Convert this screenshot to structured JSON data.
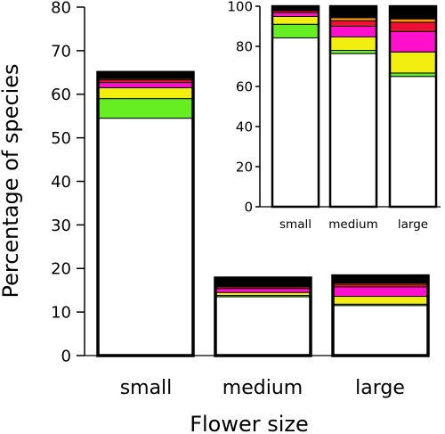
{
  "colors": {
    "white": "#ffffff",
    "green": "#66ee22",
    "yellow": "#f2ee10",
    "magenta": "#ff11cc",
    "red": "#ee1133",
    "orange": "#ff9900",
    "black": "#000000"
  },
  "chart_data": [
    {
      "type": "bar",
      "stacked": true,
      "title": "",
      "xlabel": "Flower size",
      "ylabel": "Percentage of species",
      "categories": [
        "small",
        "medium",
        "large"
      ],
      "ylim": [
        0,
        80
      ],
      "yticks": [
        "0",
        "10",
        "20",
        "30",
        "40",
        "50",
        "60",
        "70",
        "80"
      ],
      "grid": false,
      "legend": "none",
      "series": [
        {
          "color": "white",
          "values": [
            54.5,
            13.5,
            11.5
          ]
        },
        {
          "color": "green",
          "values": [
            4.5,
            0.3,
            0.3
          ]
        },
        {
          "color": "yellow",
          "values": [
            2.5,
            0.7,
            1.8
          ]
        },
        {
          "color": "magenta",
          "values": [
            1.2,
            0.9,
            2.2
          ]
        },
        {
          "color": "red",
          "values": [
            0.6,
            0.4,
            0.6
          ]
        },
        {
          "color": "orange",
          "values": [
            0.3,
            0.2,
            0.3
          ]
        },
        {
          "color": "black",
          "values": [
            1.4,
            1.8,
            1.6
          ]
        }
      ]
    },
    {
      "type": "bar",
      "stacked": true,
      "inset": true,
      "title": "",
      "xlabel": "",
      "ylabel": "",
      "categories": [
        "small",
        "medium",
        "large"
      ],
      "ylim": [
        0,
        100
      ],
      "yticks": [
        "0",
        "20",
        "40",
        "60",
        "80",
        "100"
      ],
      "grid": false,
      "legend": "none",
      "series": [
        {
          "color": "white",
          "values": [
            84.2,
            76.4,
            65.0
          ]
        },
        {
          "color": "green",
          "values": [
            6.8,
            1.6,
            1.7
          ]
        },
        {
          "color": "yellow",
          "values": [
            3.9,
            6.7,
            10.5
          ]
        },
        {
          "color": "magenta",
          "values": [
            1.9,
            5.3,
            10.2
          ]
        },
        {
          "color": "red",
          "values": [
            1.0,
            2.8,
            4.6
          ]
        },
        {
          "color": "orange",
          "values": [
            0.4,
            1.5,
            1.7
          ]
        },
        {
          "color": "black",
          "values": [
            1.8,
            5.7,
            6.3
          ]
        }
      ]
    }
  ]
}
